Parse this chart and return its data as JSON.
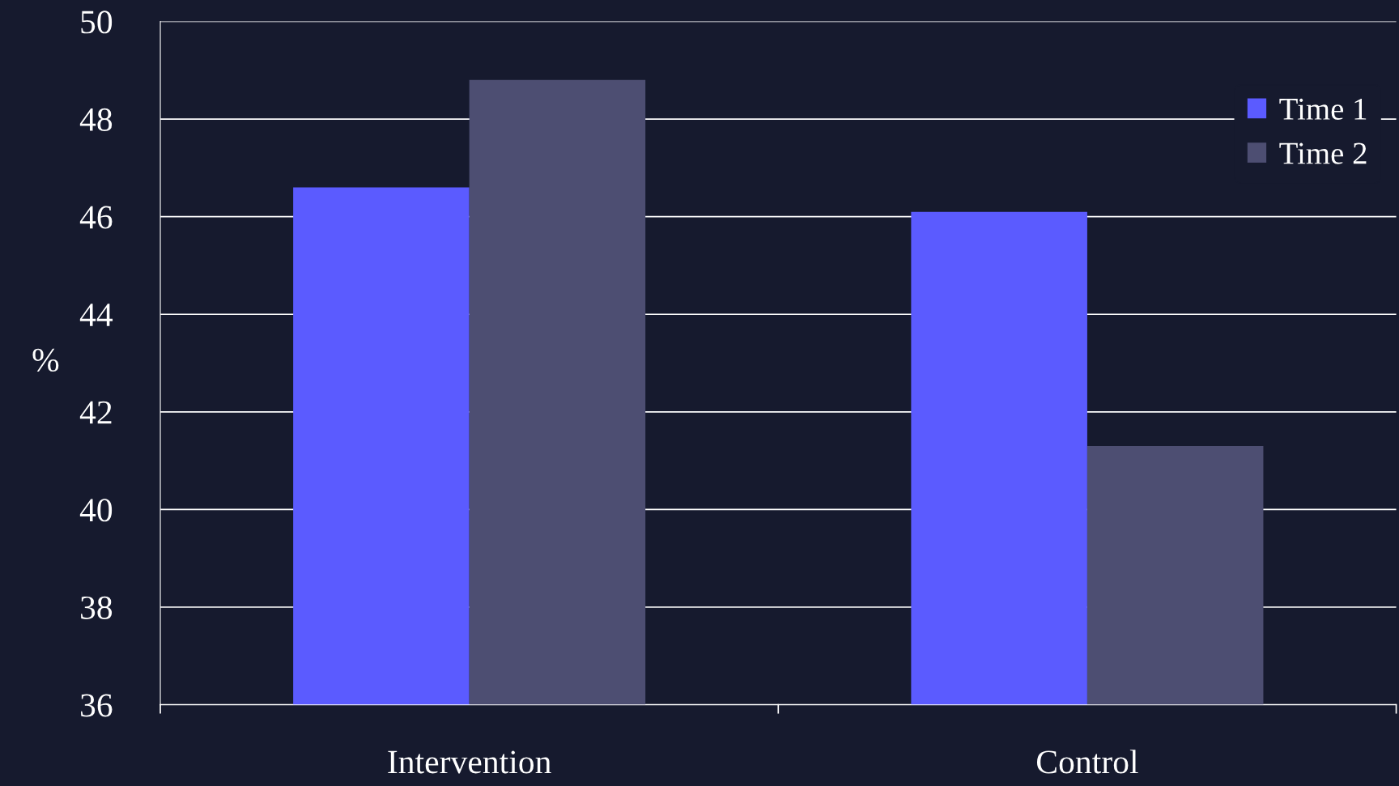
{
  "chart_data": {
    "type": "bar",
    "ylabel": "%",
    "categories": [
      "Intervention",
      "Control"
    ],
    "series": [
      {
        "name": "Time 1",
        "color": "#5b5bff",
        "values": [
          46.6,
          46.1
        ]
      },
      {
        "name": "Time 2",
        "color": "#4d4e72",
        "values": [
          48.8,
          41.3
        ]
      }
    ],
    "ylim": [
      36,
      50
    ],
    "yticks": [
      36,
      38,
      40,
      42,
      44,
      46,
      48,
      50
    ],
    "grid": "y",
    "legend": "top right"
  }
}
